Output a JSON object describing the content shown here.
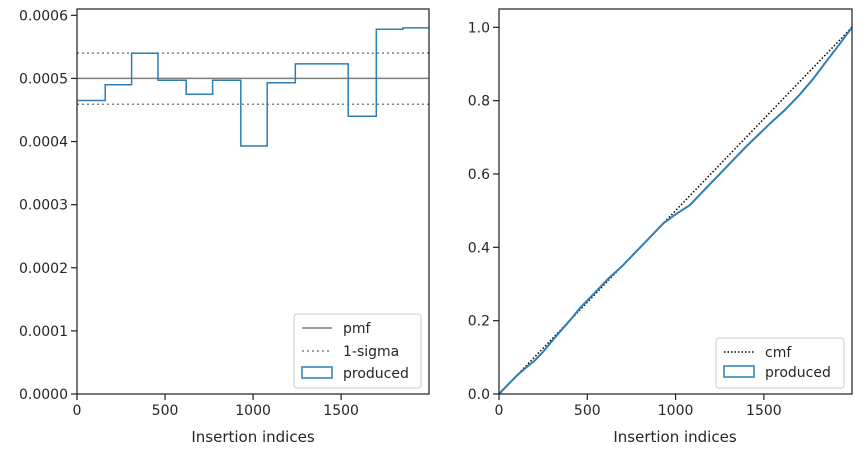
{
  "chart_data": [
    {
      "type": "line",
      "xlabel": "Insertion indices",
      "ylabel": "",
      "xlim": [
        0,
        1999
      ],
      "ylim": [
        0,
        0.00061
      ],
      "x_ticks": [
        0,
        500,
        1000,
        1500
      ],
      "x_tick_labels": [
        "0",
        "500",
        "1000",
        "1500"
      ],
      "y_ticks": [
        0,
        0.0001,
        0.0002,
        0.0003,
        0.0004,
        0.0005,
        0.0006
      ],
      "y_tick_labels": [
        "0.0000",
        "0.0001",
        "0.0002",
        "0.0003",
        "0.0004",
        "0.0005",
        "0.0006"
      ],
      "grid": false,
      "legend_position": "lower right",
      "legend": [
        "pmf",
        "1-sigma",
        "produced"
      ],
      "pmf": 0.0005,
      "sigma_lower": 0.000459,
      "sigma_upper": 0.00054,
      "produced": {
        "name": "produced",
        "bin_edges": [
          0,
          160,
          310,
          460,
          620,
          770,
          930,
          1080,
          1240,
          1540,
          1700,
          1850,
          1999
        ],
        "values": [
          0.000465,
          0.00049,
          0.00054,
          0.000497,
          0.000475,
          0.000497,
          0.000393,
          0.000493,
          0.000523,
          0.00044,
          0.000578,
          0.00058
        ]
      },
      "colors": {
        "produced": "#2e7fb5",
        "reference": "#7f7f7f"
      }
    },
    {
      "type": "line",
      "xlabel": "Insertion indices",
      "ylabel": "",
      "xlim": [
        0,
        1999
      ],
      "ylim": [
        0,
        1.05
      ],
      "x_ticks": [
        0,
        500,
        1000,
        1500
      ],
      "x_tick_labels": [
        "0",
        "500",
        "1000",
        "1500"
      ],
      "y_ticks": [
        0,
        0.2,
        0.4,
        0.6,
        0.8,
        1.0
      ],
      "y_tick_labels": [
        "0.0",
        "0.2",
        "0.4",
        "0.6",
        "0.8",
        "1.0"
      ],
      "grid": false,
      "legend_position": "lower right",
      "legend": [
        "cmf",
        "produced"
      ],
      "cmf": {
        "name": "cmf",
        "x": [
          0,
          1999
        ],
        "y": [
          0,
          1.0
        ]
      },
      "produced": {
        "name": "produced",
        "x": [
          0,
          50,
          100,
          160,
          200,
          250,
          310,
          400,
          460,
          540,
          620,
          700,
          770,
          850,
          930,
          1000,
          1080,
          1160,
          1240,
          1400,
          1540,
          1620,
          1700,
          1780,
          1850,
          1930,
          1999
        ],
        "y": [
          0,
          0.025,
          0.05,
          0.075,
          0.09,
          0.115,
          0.15,
          0.2,
          0.235,
          0.275,
          0.315,
          0.35,
          0.385,
          0.425,
          0.465,
          0.49,
          0.515,
          0.555,
          0.595,
          0.675,
          0.74,
          0.775,
          0.815,
          0.86,
          0.905,
          0.955,
          1.0
        ]
      },
      "colors": {
        "produced": "#2e7fb5",
        "cmf": "#000000"
      }
    }
  ]
}
